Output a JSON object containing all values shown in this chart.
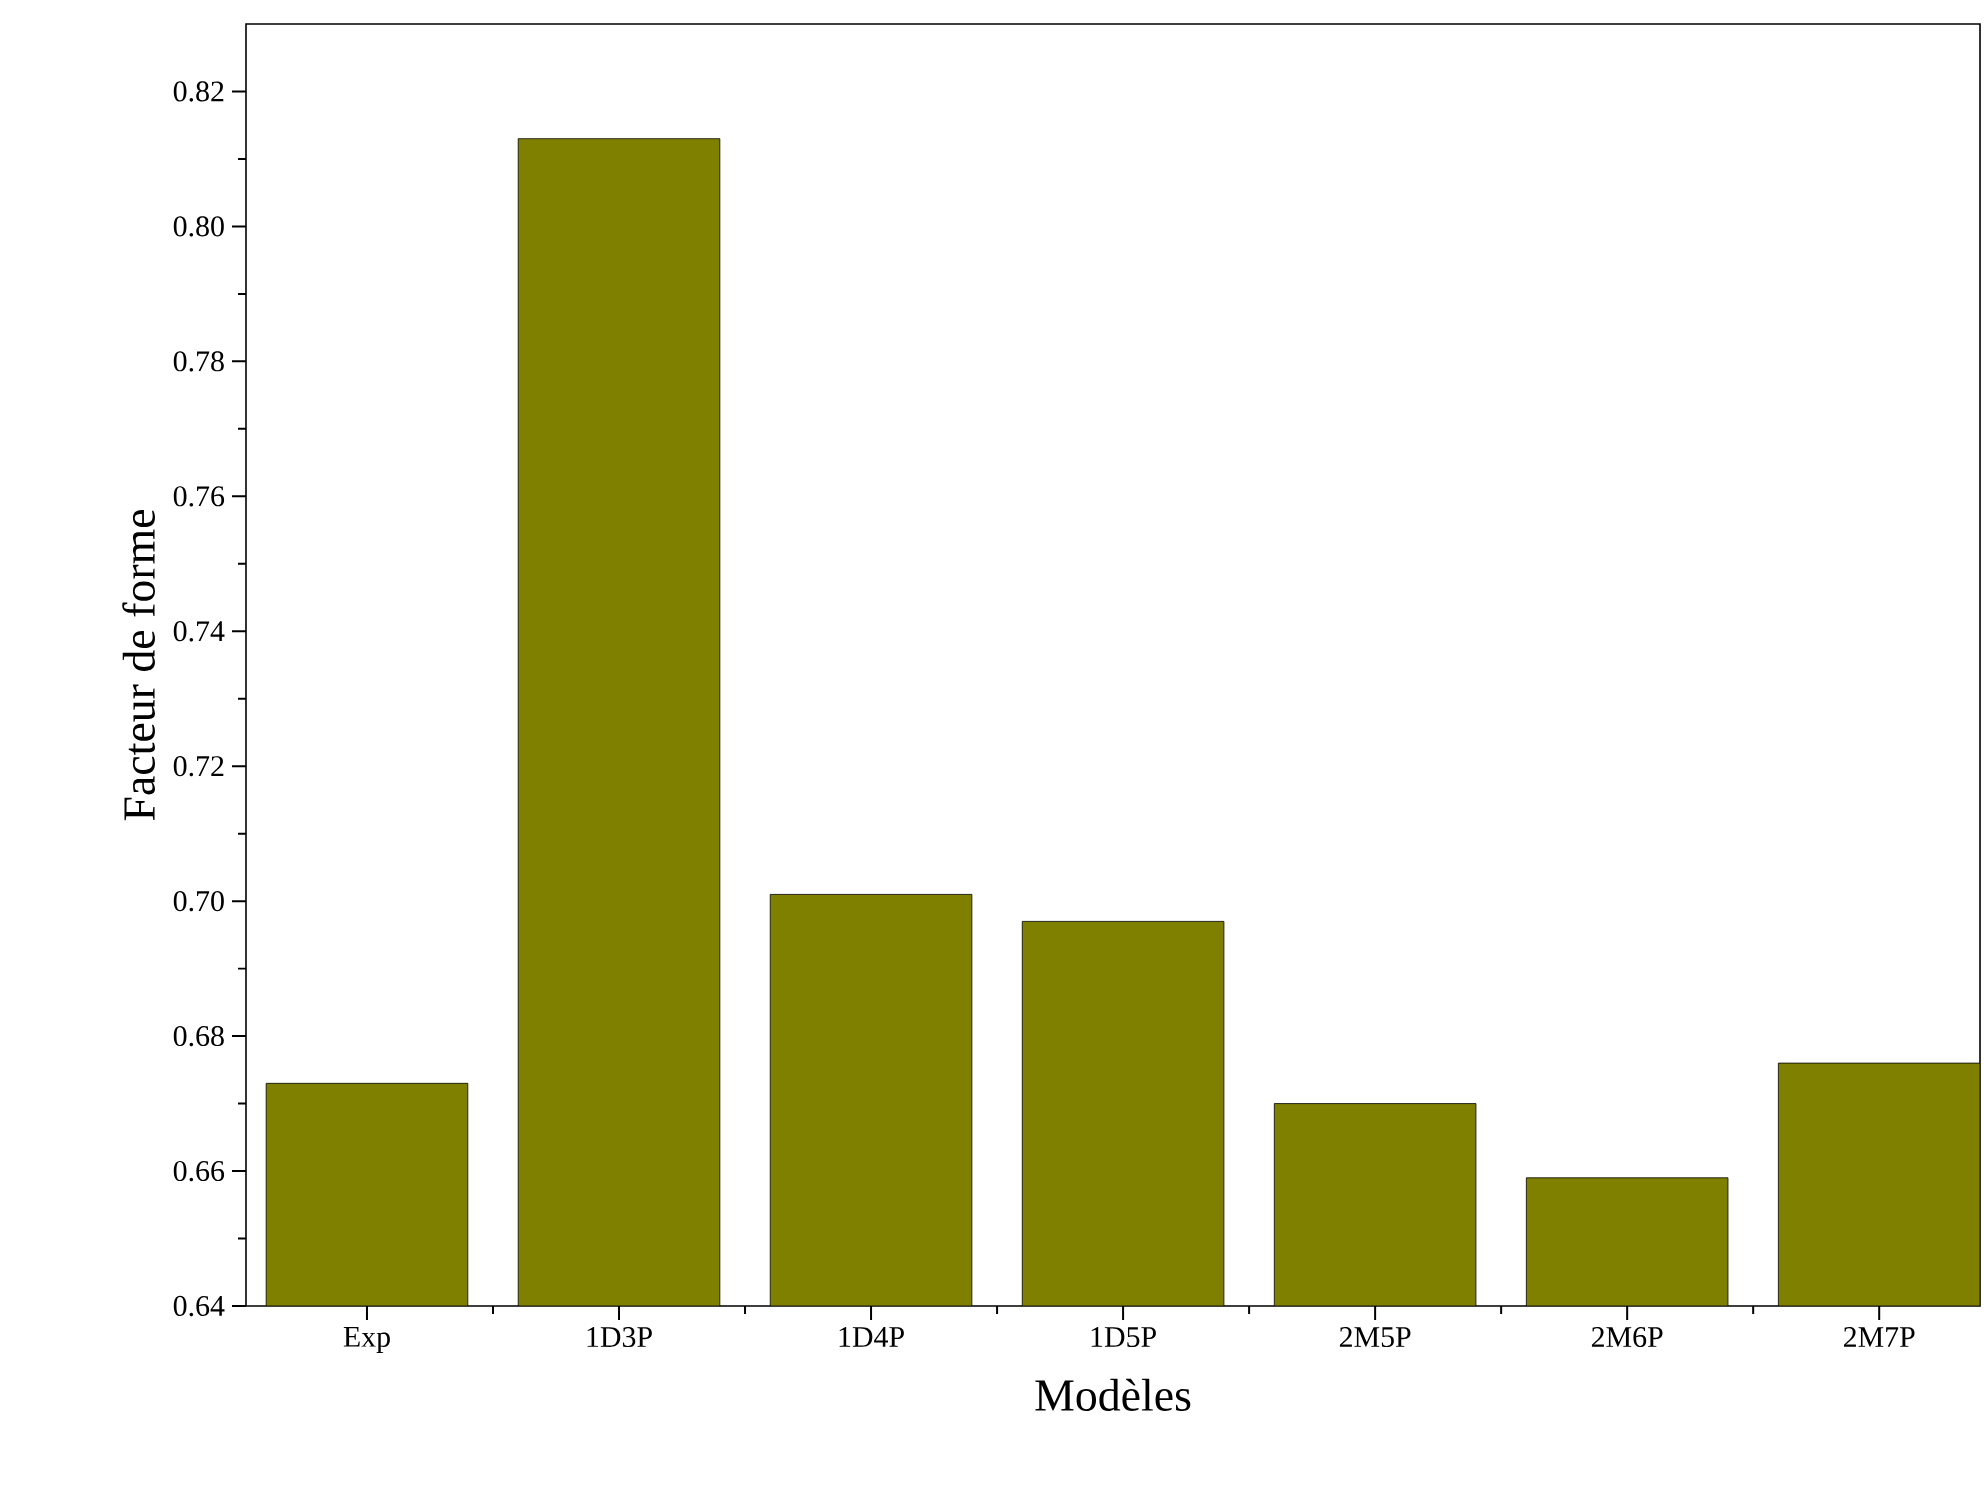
{
  "chart_data": {
    "type": "bar",
    "xlabel": "Modèles",
    "ylabel": "Facteur de forme",
    "categories": [
      "Exp",
      "1D3P",
      "1D4P",
      "1D5P",
      "2M5P",
      "2M6P",
      "2M7P"
    ],
    "values": [
      0.673,
      0.813,
      0.701,
      0.697,
      0.67,
      0.659,
      0.676
    ],
    "color": "#808000",
    "ylim": [
      0.64,
      0.83
    ],
    "yticks": [
      {
        "value": 0.64,
        "label": "0.64"
      },
      {
        "value": 0.66,
        "label": "0.66"
      },
      {
        "value": 0.68,
        "label": "0.68"
      },
      {
        "value": 0.7,
        "label": "0.70"
      },
      {
        "value": 0.72,
        "label": "0.72"
      },
      {
        "value": 0.74,
        "label": "0.74"
      },
      {
        "value": 0.76,
        "label": "0.76"
      },
      {
        "value": 0.78,
        "label": "0.78"
      },
      {
        "value": 0.8,
        "label": "0.80"
      },
      {
        "value": 0.82,
        "label": "0.82"
      }
    ],
    "grid": false
  }
}
